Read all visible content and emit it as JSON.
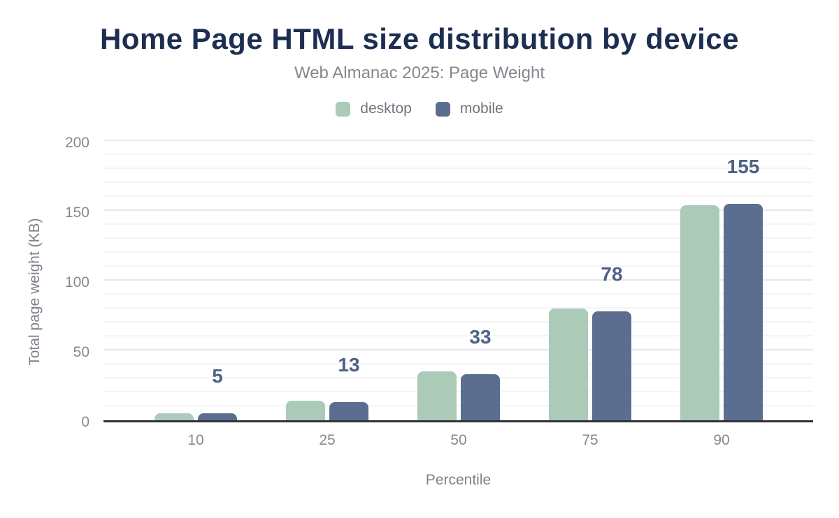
{
  "header": {
    "title": "Home Page HTML size distribution by device",
    "subtitle": "Web Almanac 2025: Page Weight"
  },
  "legend": {
    "items": [
      {
        "label": "desktop",
        "color": "#abcab8"
      },
      {
        "label": "mobile",
        "color": "#5c6e90"
      }
    ]
  },
  "chart_data": {
    "type": "bar",
    "title": "Home Page HTML size distribution by device",
    "subtitle": "Web Almanac 2025: Page Weight",
    "categories": [
      "10",
      "25",
      "50",
      "75",
      "90"
    ],
    "series": [
      {
        "name": "desktop",
        "color": "#abcab8",
        "values": [
          5,
          14,
          35,
          80,
          154
        ]
      },
      {
        "name": "mobile",
        "color": "#5c6e90",
        "values": [
          5,
          13,
          33,
          78,
          155
        ]
      }
    ],
    "data_labels": {
      "series": "mobile",
      "values": [
        "5",
        "13",
        "33",
        "78",
        "155"
      ],
      "color": "#4e6286"
    },
    "xlabel": "Percentile",
    "ylabel": "Total page weight (KB)",
    "ylim": [
      0,
      200
    ],
    "y_major_ticks": [
      0,
      50,
      100,
      150,
      200
    ],
    "y_minor_step": 10,
    "grid": true,
    "legend_position": "top",
    "axis_line_color": "#303136",
    "major_grid_color": "#e8e8ec",
    "minor_grid_color": "#f4f4f6"
  }
}
